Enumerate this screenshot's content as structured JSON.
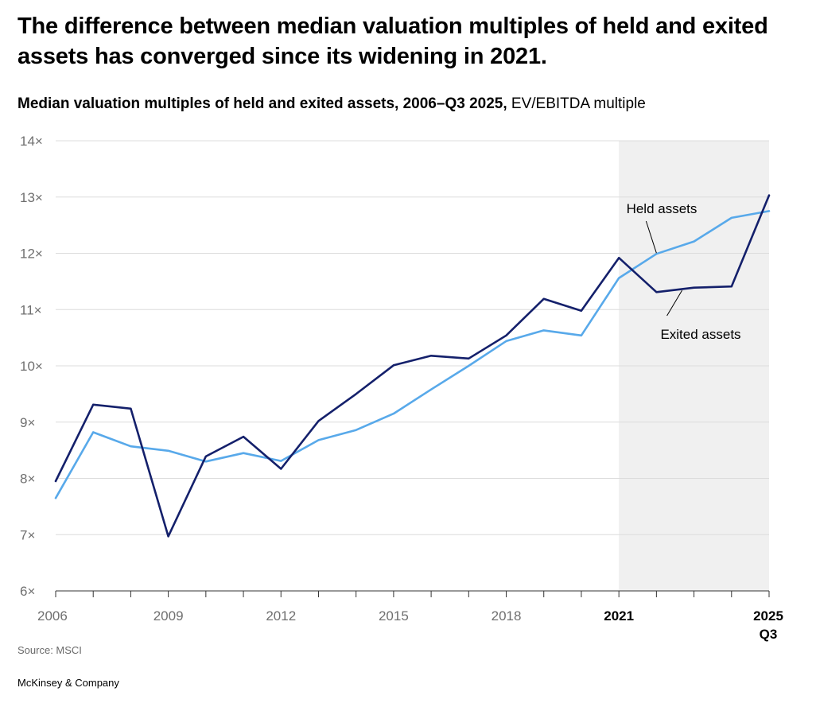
{
  "headline": "The difference between median valuation multiples of held and exited assets has converged since its widening in 2021.",
  "subtitle_bold": "Median valuation multiples of held and exited assets, 2006–Q3 2025,",
  "subtitle_unit": " EV/EBITDA multiple",
  "source": "Source: MSCI",
  "brand": "McKinsey & Company",
  "colors": {
    "held": "#58a9ea",
    "exited": "#14206b",
    "highlight": "#f0f0f0",
    "grid": "#dcdcdc"
  },
  "chart_data": {
    "type": "line",
    "title": "Median valuation multiples of held and exited assets, 2006–Q3 2025",
    "ylabel": "EV/EBITDA multiple",
    "ylim": [
      6,
      14
    ],
    "xlim": [
      2006,
      2025
    ],
    "grid": true,
    "highlight_range": [
      2021,
      2025
    ],
    "x": [
      2006,
      2007,
      2008,
      2009,
      2010,
      2011,
      2012,
      2013,
      2014,
      2015,
      2016,
      2017,
      2018,
      2019,
      2020,
      2021,
      2022,
      2023,
      2024,
      2025
    ],
    "y_ticks": [
      {
        "value": 14,
        "label": "14×"
      },
      {
        "value": 13,
        "label": "13×"
      },
      {
        "value": 12,
        "label": "12×"
      },
      {
        "value": 11,
        "label": "11×"
      },
      {
        "value": 10,
        "label": "10×"
      },
      {
        "value": 9,
        "label": "9×"
      },
      {
        "value": 8,
        "label": "8×"
      },
      {
        "value": 7,
        "label": "7×"
      },
      {
        "value": 6,
        "label": "6×"
      }
    ],
    "x_ticks": [
      {
        "value": 2006,
        "label": "2006",
        "bold": false
      },
      {
        "value": 2009,
        "label": "2009",
        "bold": false
      },
      {
        "value": 2012,
        "label": "2012",
        "bold": false
      },
      {
        "value": 2015,
        "label": "2015",
        "bold": false
      },
      {
        "value": 2018,
        "label": "2018",
        "bold": false
      },
      {
        "value": 2021,
        "label": "2021",
        "bold": true
      },
      {
        "value": 2025,
        "label": "2025",
        "sublabel": "Q3",
        "bold": true
      }
    ],
    "series": [
      {
        "key": "held",
        "name": "Held assets",
        "values": [
          7.65,
          8.82,
          8.57,
          8.49,
          8.3,
          8.45,
          8.31,
          8.68,
          8.86,
          9.15,
          9.58,
          10.0,
          10.44,
          10.63,
          10.54,
          11.56,
          11.99,
          12.21,
          12.63,
          12.75
        ]
      },
      {
        "key": "exited",
        "name": "Exited assets",
        "values": [
          7.95,
          9.31,
          9.24,
          6.97,
          8.39,
          8.74,
          8.17,
          9.02,
          9.5,
          10.01,
          10.18,
          10.13,
          10.54,
          11.19,
          10.98,
          11.92,
          11.31,
          11.39,
          11.41,
          13.03
        ]
      }
    ]
  }
}
